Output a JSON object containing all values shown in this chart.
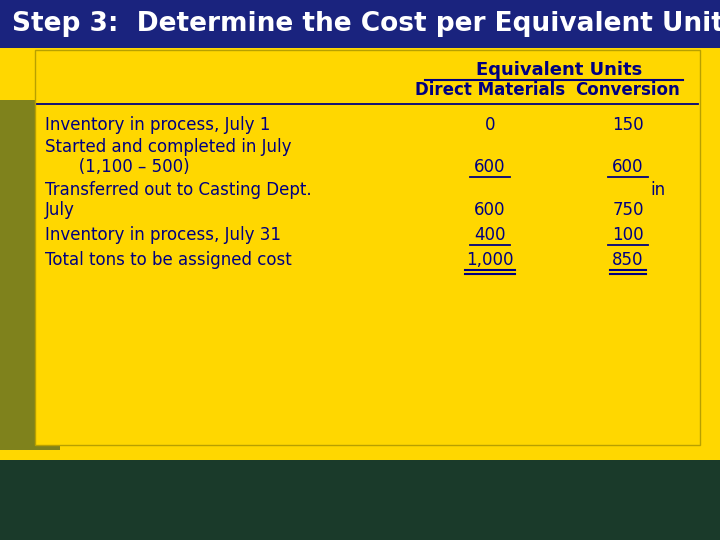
{
  "title": "Step 3:  Determine the Cost per Equivalent Unit",
  "title_bg": "#1a237e",
  "title_color": "#ffffff",
  "header1": "Equivalent Units",
  "header2": "Direct Materials",
  "header3": "Conversion",
  "rows": [
    {
      "label": "Inventory in process, July 1",
      "label2": null,
      "dm": "0",
      "conv": "150",
      "dm_ul": false,
      "conv_ul": false,
      "dm_dbl": false,
      "conv_dbl": false
    },
    {
      "label": "Started and completed in July",
      "label2": "   (1,100 – 500)",
      "dm": "600",
      "conv": "600",
      "dm_ul": true,
      "conv_ul": true,
      "dm_dbl": false,
      "conv_dbl": false
    },
    {
      "label": "Transferred out to Casting Dept.",
      "label2": "July",
      "dm": "600",
      "conv_top": "in",
      "conv": "750",
      "dm_ul": false,
      "conv_ul": false,
      "dm_dbl": false,
      "conv_dbl": false
    },
    {
      "label": "Inventory in process, July 31",
      "label2": null,
      "dm": "400",
      "conv": "100",
      "dm_ul": true,
      "conv_ul": true,
      "dm_dbl": false,
      "conv_dbl": false
    },
    {
      "label": "Total tons to be assigned cost",
      "label2": null,
      "dm": "1,000",
      "conv": "850",
      "dm_ul": false,
      "conv_ul": false,
      "dm_dbl": true,
      "conv_dbl": true
    }
  ],
  "table_bg": "#FFD700",
  "bg_yellow": "#FFD700",
  "title_font_size": 19,
  "header_font_size": 12,
  "body_font_size": 12,
  "text_color": "#000080"
}
